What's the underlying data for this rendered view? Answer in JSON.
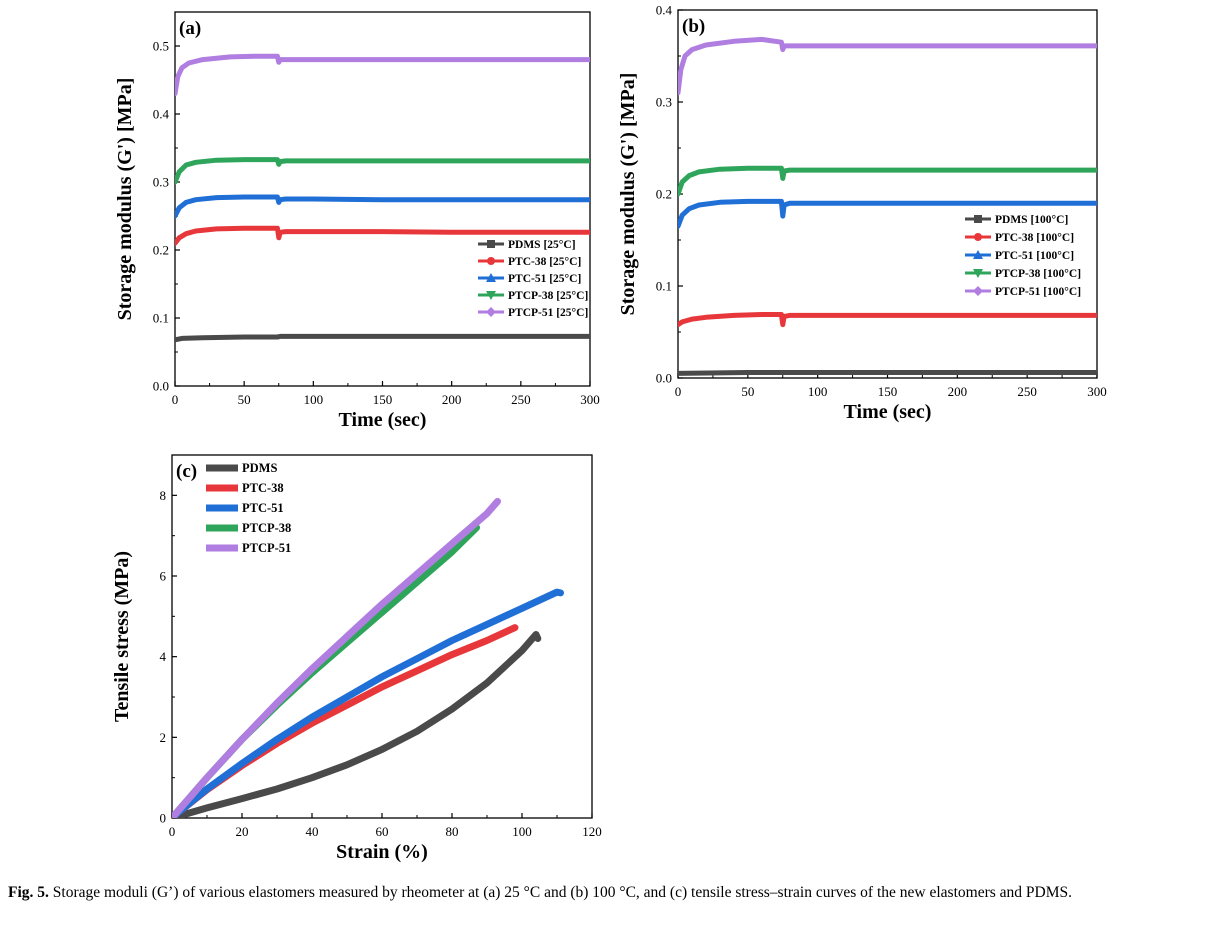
{
  "caption": {
    "label": "Fig. 5.",
    "text": "Storage moduli (G’) of various elastomers measured by rheometer at (a) 25 °C and (b) 100 °C, and (c) tensile stress–strain curves of the new elastomers and PDMS."
  },
  "colors": {
    "PDMS": "#4a4a4a",
    "PTC-38": "#e8373a",
    "PTC-51": "#1f6fd6",
    "PTCP-38": "#2ea55a",
    "PTCP-51": "#b07ee0"
  },
  "chart_data": [
    {
      "panel": "(a)",
      "type": "line",
      "xlabel": "Time (sec)",
      "ylabel": "Storage modulus (G') [MPa]",
      "xlim": [
        0,
        300
      ],
      "ylim": [
        0,
        0.55
      ],
      "xticks": [
        "0",
        "50",
        "100",
        "150",
        "200",
        "250",
        "300"
      ],
      "yticks": [
        "0.0",
        "0.1",
        "0.2",
        "0.3",
        "0.4",
        "0.5"
      ],
      "legend_position": "center-right",
      "series": [
        {
          "name": "PDMS [25°C]",
          "marker": "square",
          "x": [
            0,
            5,
            20,
            50,
            74,
            76,
            100,
            150,
            200,
            250,
            300
          ],
          "y": [
            0.068,
            0.07,
            0.071,
            0.072,
            0.072,
            0.073,
            0.073,
            0.073,
            0.073,
            0.073,
            0.073
          ]
        },
        {
          "name": "PTC-38 [25°C]",
          "marker": "circle",
          "x": [
            0,
            3,
            8,
            15,
            30,
            50,
            74,
            75,
            76,
            80,
            100,
            150,
            200,
            250,
            300
          ],
          "y": [
            0.21,
            0.218,
            0.224,
            0.228,
            0.231,
            0.232,
            0.232,
            0.218,
            0.226,
            0.227,
            0.227,
            0.227,
            0.226,
            0.226,
            0.226
          ]
        },
        {
          "name": "PTC-51 [25°C]",
          "marker": "triangle-up",
          "x": [
            0,
            3,
            8,
            15,
            30,
            50,
            74,
            75,
            76,
            80,
            100,
            150,
            200,
            250,
            300
          ],
          "y": [
            0.25,
            0.262,
            0.27,
            0.274,
            0.277,
            0.278,
            0.278,
            0.27,
            0.274,
            0.275,
            0.275,
            0.274,
            0.274,
            0.274,
            0.274
          ]
        },
        {
          "name": "PTCP-38 [25°C]",
          "marker": "triangle-down",
          "x": [
            0,
            3,
            8,
            15,
            30,
            50,
            74,
            75,
            76,
            80,
            100,
            150,
            200,
            250,
            300
          ],
          "y": [
            0.3,
            0.315,
            0.325,
            0.329,
            0.332,
            0.333,
            0.333,
            0.326,
            0.33,
            0.331,
            0.331,
            0.331,
            0.331,
            0.331,
            0.331
          ]
        },
        {
          "name": "PTCP-51 [25°C]",
          "marker": "diamond",
          "x": [
            0,
            2,
            5,
            10,
            20,
            40,
            60,
            74,
            75,
            76,
            80,
            100,
            150,
            200,
            250,
            300
          ],
          "y": [
            0.43,
            0.455,
            0.468,
            0.475,
            0.48,
            0.484,
            0.485,
            0.485,
            0.476,
            0.48,
            0.48,
            0.48,
            0.48,
            0.48,
            0.48,
            0.48
          ]
        }
      ]
    },
    {
      "panel": "(b)",
      "type": "line",
      "xlabel": "Time (sec)",
      "ylabel": "Storage modulus (G') [MPa]",
      "xlim": [
        0,
        300
      ],
      "ylim": [
        0,
        0.4
      ],
      "xticks": [
        "0",
        "50",
        "100",
        "150",
        "200",
        "250",
        "300"
      ],
      "yticks": [
        "0.0",
        "0.1",
        "0.2",
        "0.3",
        "0.4"
      ],
      "legend_position": "center-right",
      "series": [
        {
          "name": "PDMS [100°C]",
          "marker": "square",
          "x": [
            0,
            50,
            100,
            150,
            200,
            250,
            300
          ],
          "y": [
            0.005,
            0.006,
            0.006,
            0.006,
            0.006,
            0.006,
            0.006
          ]
        },
        {
          "name": "PTC-38 [100°C]",
          "marker": "circle",
          "x": [
            0,
            3,
            10,
            20,
            40,
            60,
            74,
            75,
            76,
            80,
            100,
            150,
            200,
            250,
            300
          ],
          "y": [
            0.058,
            0.061,
            0.064,
            0.066,
            0.068,
            0.069,
            0.069,
            0.058,
            0.067,
            0.068,
            0.068,
            0.068,
            0.068,
            0.068,
            0.068
          ]
        },
        {
          "name": "PTC-51 [100°C]",
          "marker": "triangle-up",
          "x": [
            0,
            3,
            8,
            15,
            30,
            50,
            74,
            75,
            76,
            80,
            100,
            150,
            200,
            250,
            300
          ],
          "y": [
            0.165,
            0.177,
            0.184,
            0.188,
            0.191,
            0.192,
            0.192,
            0.176,
            0.188,
            0.19,
            0.19,
            0.19,
            0.19,
            0.19,
            0.19
          ]
        },
        {
          "name": "PTCP-38 [100°C]",
          "marker": "triangle-down",
          "x": [
            0,
            3,
            8,
            15,
            30,
            50,
            74,
            75,
            76,
            80,
            100,
            150,
            200,
            250,
            300
          ],
          "y": [
            0.2,
            0.213,
            0.22,
            0.224,
            0.227,
            0.228,
            0.228,
            0.217,
            0.225,
            0.226,
            0.226,
            0.226,
            0.226,
            0.226,
            0.226
          ]
        },
        {
          "name": "PTCP-51 [100°C]",
          "marker": "diamond",
          "x": [
            0,
            2,
            5,
            10,
            20,
            40,
            60,
            74,
            75,
            76,
            80,
            100,
            150,
            200,
            250,
            300
          ],
          "y": [
            0.31,
            0.335,
            0.35,
            0.357,
            0.362,
            0.366,
            0.368,
            0.365,
            0.357,
            0.361,
            0.361,
            0.361,
            0.361,
            0.361,
            0.361,
            0.361
          ]
        }
      ]
    },
    {
      "panel": "(c)",
      "type": "line",
      "xlabel": "Strain (%)",
      "ylabel": "Tensile stress (MPa)",
      "xlim": [
        0,
        120
      ],
      "ylim": [
        0,
        9
      ],
      "xticks": [
        "0",
        "20",
        "40",
        "60",
        "80",
        "100",
        "120"
      ],
      "yticks": [
        "0",
        "2",
        "4",
        "6",
        "8"
      ],
      "legend_position": "top-left",
      "series": [
        {
          "name": "PDMS",
          "x": [
            0,
            2,
            10,
            20,
            30,
            40,
            50,
            60,
            70,
            80,
            90,
            100,
            104,
            104.5
          ],
          "y": [
            0,
            0.05,
            0.25,
            0.48,
            0.72,
            1.0,
            1.32,
            1.7,
            2.15,
            2.7,
            3.35,
            4.15,
            4.55,
            4.45
          ]
        },
        {
          "name": "PTC-38",
          "x": [
            0,
            2,
            10,
            20,
            30,
            40,
            50,
            60,
            70,
            80,
            90,
            98
          ],
          "y": [
            0,
            0.15,
            0.7,
            1.3,
            1.85,
            2.35,
            2.8,
            3.25,
            3.65,
            4.05,
            4.4,
            4.72
          ]
        },
        {
          "name": "PTC-51",
          "x": [
            0,
            2,
            10,
            20,
            30,
            40,
            50,
            60,
            70,
            80,
            90,
            100,
            110,
            111
          ],
          "y": [
            0,
            0.15,
            0.72,
            1.35,
            1.95,
            2.5,
            3.0,
            3.5,
            3.95,
            4.4,
            4.8,
            5.2,
            5.6,
            5.58
          ]
        },
        {
          "name": "PTCP-38",
          "x": [
            0,
            2,
            10,
            20,
            30,
            40,
            50,
            60,
            70,
            80,
            87
          ],
          "y": [
            0,
            0.2,
            1.0,
            1.95,
            2.8,
            3.6,
            4.35,
            5.1,
            5.85,
            6.6,
            7.2
          ]
        },
        {
          "name": "PTCP-51",
          "x": [
            0,
            2,
            10,
            20,
            30,
            40,
            50,
            60,
            70,
            80,
            90,
            93
          ],
          "y": [
            0,
            0.2,
            1.0,
            1.95,
            2.85,
            3.7,
            4.5,
            5.3,
            6.05,
            6.8,
            7.55,
            7.85
          ]
        }
      ]
    }
  ]
}
